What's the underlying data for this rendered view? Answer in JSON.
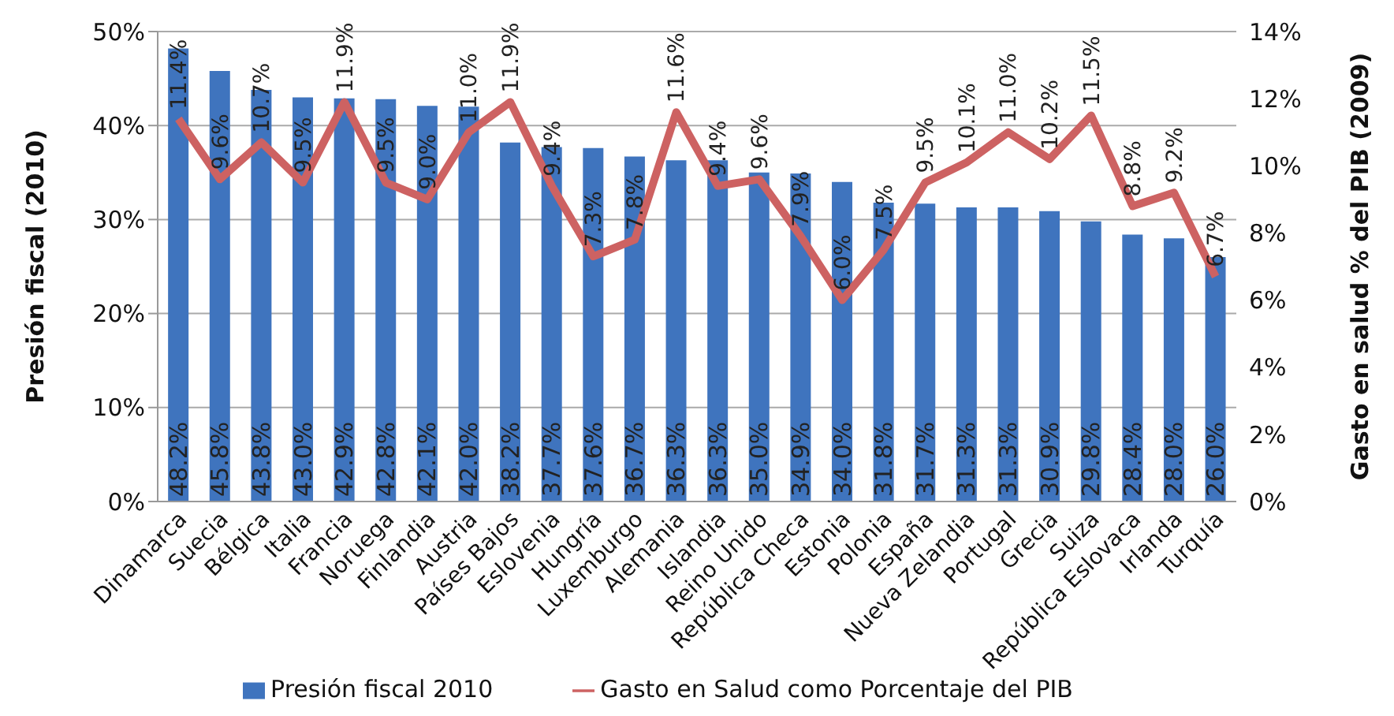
{
  "chart_data": {
    "type": "bar",
    "xlabel": null,
    "ylabel": "Presión fiscal (2010)",
    "y2label": "Gasto en salud % del PIB (2009)",
    "categories": [
      "Dinamarca",
      "Suecia",
      "Bélgica",
      "Italia",
      "Francia",
      "Noruega",
      "Finlandia",
      "Austria",
      "Países Bajos",
      "Eslovenia",
      "Hungría",
      "Luxemburgo",
      "Alemania",
      "Islandia",
      "Reino Unido",
      "República Checa",
      "Estonia",
      "Polonia",
      "España",
      "Nueva Zelandia",
      "Portugal",
      "Grecia",
      "Suiza",
      "República Eslovaca",
      "Irlanda",
      "Turquía"
    ],
    "series": [
      {
        "name": "Presión fiscal 2010",
        "color": "#3f74be",
        "values": [
          48.2,
          45.8,
          43.8,
          43.0,
          42.9,
          42.8,
          42.1,
          42.0,
          38.2,
          37.7,
          37.6,
          36.7,
          36.3,
          36.3,
          35.0,
          34.9,
          34.0,
          31.8,
          31.7,
          31.3,
          31.3,
          30.9,
          29.8,
          28.4,
          28.0,
          26.0
        ],
        "value_labels": [
          "48.2%",
          "45.8%",
          "43.8%",
          "43.0%",
          "42.9%",
          "42.8%",
          "42.1%",
          "42.0%",
          "38.2%",
          "37.7%",
          "37.6%",
          "36.7%",
          "36.3%",
          "36.3%",
          "35.0%",
          "34.9%",
          "34.0%",
          "31.8%",
          "31.7%",
          "31.3%",
          "31.3%",
          "30.9%",
          "29.8%",
          "28.4%",
          "28.0%",
          "26.0%"
        ]
      },
      {
        "name": "Gasto en Salud como Porcentaje del PIB",
        "type": "line",
        "axis": "y2",
        "color": "#cd6262",
        "marker": "none",
        "values": [
          11.4,
          9.6,
          10.7,
          9.5,
          11.9,
          9.5,
          9.0,
          11.0,
          11.9,
          9.4,
          7.3,
          7.8,
          11.6,
          9.4,
          9.6,
          7.9,
          6.0,
          7.5,
          9.5,
          10.1,
          11.0,
          10.2,
          11.5,
          8.8,
          9.2,
          6.7
        ],
        "value_labels": [
          "11.4%",
          "9.6%",
          "10.7%",
          "9.5%",
          "11.9%",
          "9.5%",
          "9.0%",
          "11.0%",
          "11.9%",
          "9.4%",
          "7.3%",
          "7.8%",
          "11.6%",
          "9.4%",
          "9.6%",
          "7.9%",
          "6.0%",
          "7.5%",
          "9.5%",
          "10.1%",
          "11.0%",
          "10.2%",
          "11.5%",
          "8.8%",
          "9.2%",
          "6.7%"
        ]
      }
    ],
    "ylim": [
      0,
      50
    ],
    "yticks": [
      {
        "value": 0,
        "label": "0%"
      },
      {
        "value": 10,
        "label": "10%"
      },
      {
        "value": 20,
        "label": "20%"
      },
      {
        "value": 30,
        "label": "30%"
      },
      {
        "value": 40,
        "label": "40%"
      },
      {
        "value": 50,
        "label": "50%"
      }
    ],
    "y2lim": [
      0,
      14
    ],
    "y2ticks": [
      {
        "value": 0,
        "label": "0%"
      },
      {
        "value": 2,
        "label": "2%"
      },
      {
        "value": 4,
        "label": "4%"
      },
      {
        "value": 6,
        "label": "6%"
      },
      {
        "value": 8,
        "label": "8%"
      },
      {
        "value": 10,
        "label": "10%"
      },
      {
        "value": 12,
        "label": "12%"
      },
      {
        "value": 14,
        "label": "14%"
      }
    ],
    "grid": "y",
    "legend": "bottom"
  }
}
